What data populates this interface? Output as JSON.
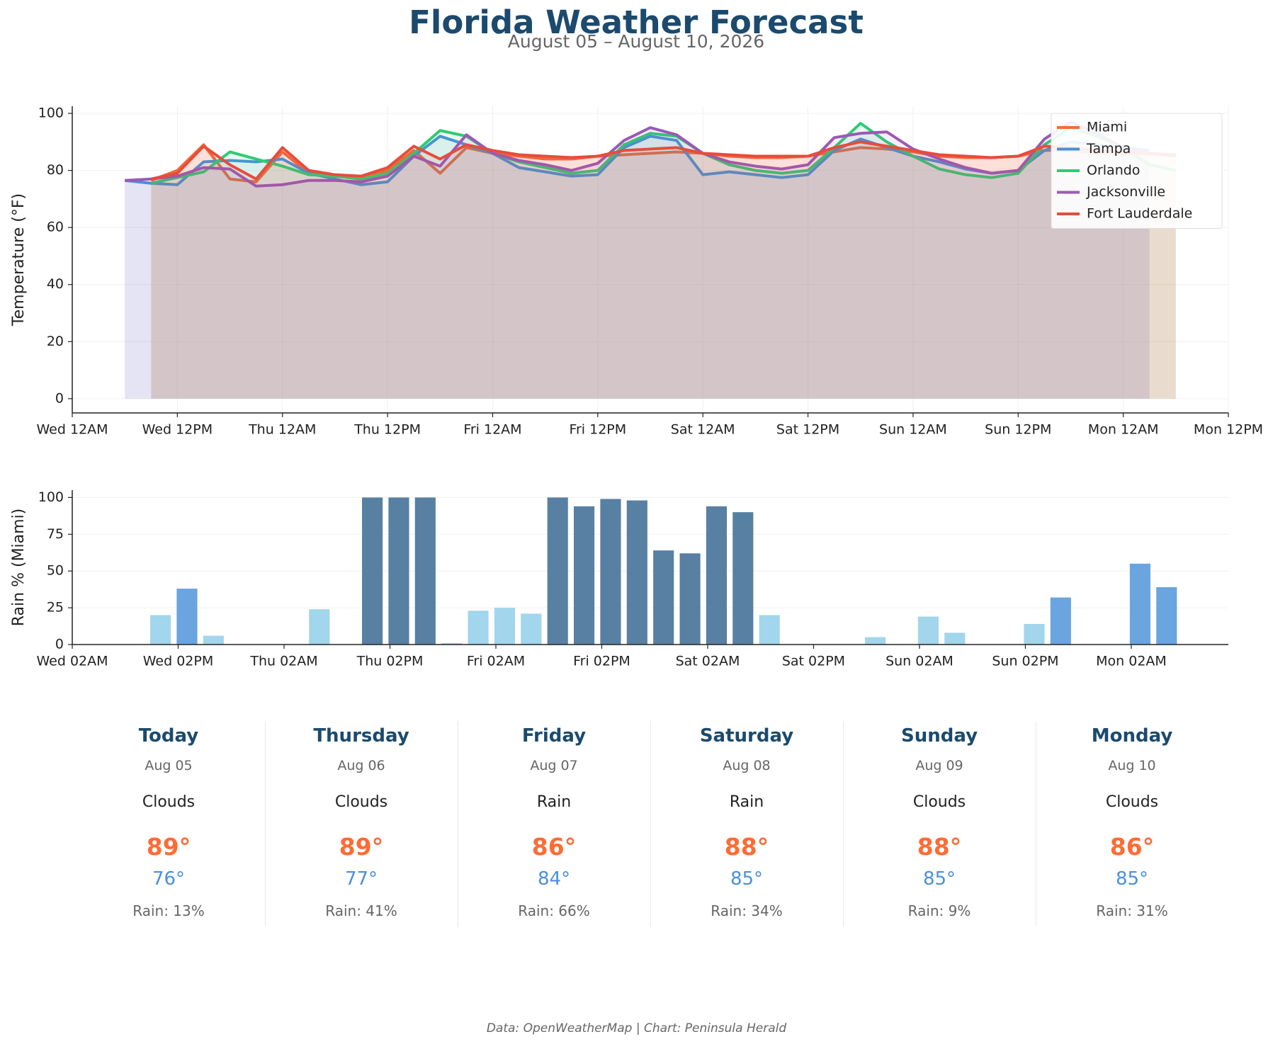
{
  "title": "Florida Weather Forecast",
  "subtitle": "August 05 – August 10, 2026",
  "chart_data": [
    {
      "type": "line",
      "ylabel": "Temperature (°F)",
      "grid": "both",
      "legend": "upper right",
      "x": [
        6,
        9,
        12,
        15,
        18,
        21,
        24,
        27,
        30,
        33,
        36,
        39,
        42,
        45,
        48,
        51,
        54,
        57,
        60,
        63,
        66,
        69,
        72,
        75,
        78,
        81,
        84,
        87,
        90,
        93,
        96,
        99,
        102,
        105,
        108,
        111,
        114,
        117,
        120,
        123,
        126
      ],
      "xlim": [
        0,
        132
      ],
      "xticks": [
        {
          "value": 0,
          "label": "Wed 12AM"
        },
        {
          "value": 12,
          "label": "Wed 12PM"
        },
        {
          "value": 24,
          "label": "Thu 12AM"
        },
        {
          "value": 36,
          "label": "Thu 12PM"
        },
        {
          "value": 48,
          "label": "Fri 12AM"
        },
        {
          "value": 60,
          "label": "Fri 12PM"
        },
        {
          "value": 72,
          "label": "Sat 12AM"
        },
        {
          "value": 84,
          "label": "Sat 12PM"
        },
        {
          "value": 96,
          "label": "Sun 12AM"
        },
        {
          "value": 108,
          "label": "Sun 12PM"
        },
        {
          "value": 120,
          "label": "Mon 12AM"
        },
        {
          "value": 132,
          "label": "Mon 12PM"
        }
      ],
      "ylim": [
        -5,
        102.5
      ],
      "yticks": [
        0,
        20,
        40,
        60,
        80,
        100
      ],
      "series": [
        {
          "name": "Miami",
          "color": "#f26b38",
          "values": [
            null,
            76.5,
            80,
            89,
            77,
            76,
            86.5,
            79,
            78,
            77,
            80,
            87,
            79,
            88,
            86,
            85,
            84,
            84,
            85,
            85.5,
            86,
            86.5,
            86,
            85,
            84.5,
            84.5,
            85,
            86.5,
            88,
            87.5,
            86.5,
            85,
            84.5,
            84.5,
            85,
            87,
            87,
            86,
            86,
            86,
            85.5
          ]
        },
        {
          "name": "Tampa",
          "color": "#4a90d9",
          "values": [
            76.5,
            75.5,
            75,
            83,
            83.5,
            83,
            84,
            79,
            77,
            75,
            76,
            85,
            92,
            89,
            86,
            81,
            79.5,
            78,
            78.5,
            88,
            92,
            90.5,
            78.5,
            79.5,
            78.5,
            77.5,
            78.5,
            87,
            91,
            88,
            85,
            83,
            80.5,
            79,
            80,
            87,
            90,
            89,
            88,
            87,
            null
          ]
        },
        {
          "name": "Orlando",
          "color": "#2ecc71",
          "values": [
            null,
            75.5,
            77.5,
            79.5,
            86.5,
            84,
            81.5,
            78.5,
            78,
            77,
            79,
            86,
            94,
            92,
            86,
            83,
            81,
            79,
            80,
            89,
            93,
            92,
            86,
            82,
            80,
            79,
            80,
            88,
            96.5,
            90,
            85,
            80.5,
            78.5,
            77.5,
            79,
            89,
            95,
            92,
            88,
            82,
            80
          ]
        },
        {
          "name": "Jacksonville",
          "color": "#9b59b6",
          "values": [
            76.5,
            77,
            78,
            81,
            80.5,
            74.5,
            75,
            76.5,
            76.5,
            76,
            78,
            85,
            81.5,
            92.5,
            86,
            83.5,
            82,
            80,
            82.5,
            90.5,
            95,
            92.5,
            86,
            83,
            81.5,
            80.5,
            82,
            91.5,
            93,
            93.5,
            87.5,
            84,
            81,
            79,
            80,
            91,
            97,
            93,
            88,
            86,
            null
          ]
        },
        {
          "name": "Fort Lauderdale",
          "color": "#e74c3c",
          "values": [
            null,
            77,
            79,
            88.5,
            82,
            77,
            88,
            80,
            78.5,
            78,
            81,
            88.5,
            84,
            89,
            87,
            85.5,
            85,
            84.5,
            85,
            87,
            87.5,
            88,
            86,
            85.5,
            85,
            85,
            85,
            88,
            90,
            88.5,
            87,
            85.5,
            85,
            84.5,
            85,
            88.5,
            88,
            87,
            86.5,
            86,
            85
          ]
        }
      ]
    },
    {
      "type": "bar",
      "ylabel": "Rain % (Miami)",
      "grid": "y",
      "x": [
        6,
        9,
        12,
        15,
        18,
        21,
        24,
        27,
        30,
        33,
        36,
        39,
        42,
        45,
        48,
        51,
        54,
        57,
        60,
        63,
        66,
        69,
        72,
        75,
        78,
        81,
        84,
        87,
        90,
        93,
        96,
        99,
        102,
        105,
        108,
        111,
        114,
        117,
        120,
        123,
        126
      ],
      "values": [
        0,
        0,
        20,
        38,
        6,
        0,
        0,
        0,
        24,
        0,
        100,
        100,
        100,
        1,
        23,
        25,
        21,
        100,
        94,
        99,
        98,
        64,
        62,
        94,
        90,
        20,
        0,
        0,
        0,
        5,
        0,
        19,
        8,
        0,
        0,
        14,
        32,
        0,
        0,
        55,
        39
      ],
      "colors": [
        "#a1d6ec",
        "#a1d6ec",
        "#a1d6ec",
        "#6aa5e0",
        "#a1d6ec",
        "#a1d6ec",
        "#a1d6ec",
        "#a1d6ec",
        "#a1d6ec",
        "#a1d6ec",
        "#5880a3",
        "#5880a3",
        "#5880a3",
        "#a1d6ec",
        "#a1d6ec",
        "#a1d6ec",
        "#a1d6ec",
        "#5880a3",
        "#5880a3",
        "#5880a3",
        "#5880a3",
        "#5880a3",
        "#5880a3",
        "#5880a3",
        "#5880a3",
        "#a1d6ec",
        "#a1d6ec",
        "#a1d6ec",
        "#a1d6ec",
        "#a1d6ec",
        "#a1d6ec",
        "#a1d6ec",
        "#a1d6ec",
        "#a1d6ec",
        "#a1d6ec",
        "#a1d6ec",
        "#6aa5e0",
        "#a1d6ec",
        "#a1d6ec",
        "#6aa5e0",
        "#6aa5e0"
      ],
      "xlim": [
        2,
        133
      ],
      "xticks": [
        {
          "value": 2,
          "label": "Wed 02AM"
        },
        {
          "value": 14,
          "label": "Wed 02PM"
        },
        {
          "value": 26,
          "label": "Thu 02AM"
        },
        {
          "value": 38,
          "label": "Thu 02PM"
        },
        {
          "value": 50,
          "label": "Fri 02AM"
        },
        {
          "value": 62,
          "label": "Fri 02PM"
        },
        {
          "value": 74,
          "label": "Sat 02AM"
        },
        {
          "value": 86,
          "label": "Sat 02PM"
        },
        {
          "value": 98,
          "label": "Sun 02AM"
        },
        {
          "value": 110,
          "label": "Sun 02PM"
        },
        {
          "value": 122,
          "label": "Mon 02AM"
        }
      ],
      "ylim": [
        0,
        105
      ],
      "yticks": [
        0,
        25,
        50,
        75,
        100
      ]
    }
  ],
  "forecast": [
    {
      "day": "Today",
      "date": "Aug 05",
      "condition": "Clouds",
      "high": "89°",
      "low": "76°",
      "rain": "Rain: 13%"
    },
    {
      "day": "Thursday",
      "date": "Aug 06",
      "condition": "Clouds",
      "high": "89°",
      "low": "77°",
      "rain": "Rain: 41%"
    },
    {
      "day": "Friday",
      "date": "Aug 07",
      "condition": "Rain",
      "high": "86°",
      "low": "84°",
      "rain": "Rain: 66%"
    },
    {
      "day": "Saturday",
      "date": "Aug 08",
      "condition": "Rain",
      "high": "88°",
      "low": "85°",
      "rain": "Rain: 34%"
    },
    {
      "day": "Sunday",
      "date": "Aug 09",
      "condition": "Clouds",
      "high": "88°",
      "low": "85°",
      "rain": "Rain: 9%"
    },
    {
      "day": "Monday",
      "date": "Aug 10",
      "condition": "Clouds",
      "high": "86°",
      "low": "85°",
      "rain": "Rain: 31%"
    }
  ],
  "footer": "Data: OpenWeatherMap | Chart: Peninsula Herald"
}
